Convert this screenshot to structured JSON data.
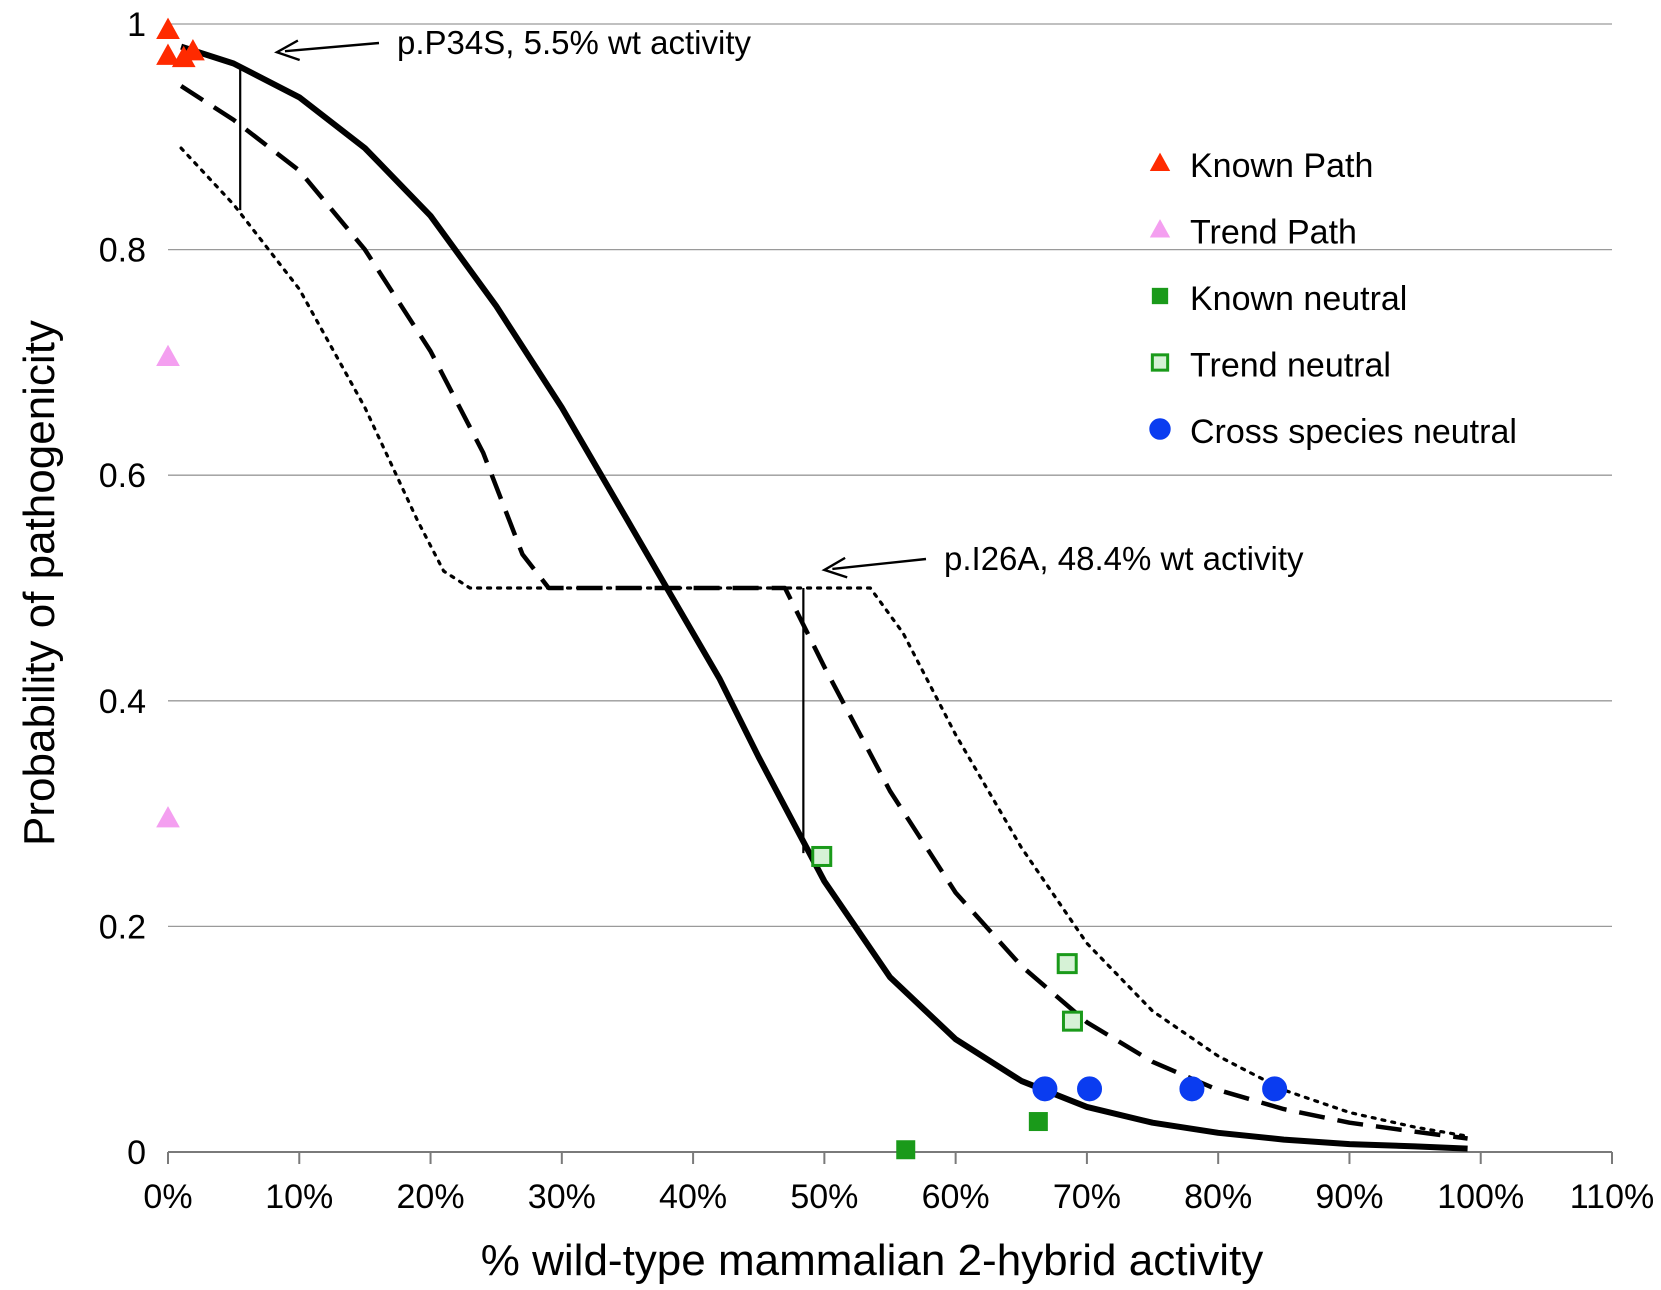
{
  "chart_data": {
    "type": "scatter",
    "title": "",
    "xlabel": "% wild-type mammalian 2-hybrid activity",
    "ylabel": "Probability of pathogenicity",
    "xlim": [
      0,
      110
    ],
    "ylim": [
      0,
      1
    ],
    "grid": {
      "horizontal": true,
      "vertical": false
    },
    "x_ticks": [
      {
        "value": 0,
        "label": "0%"
      },
      {
        "value": 10,
        "label": "10%"
      },
      {
        "value": 20,
        "label": "20%"
      },
      {
        "value": 30,
        "label": "30%"
      },
      {
        "value": 40,
        "label": "40%"
      },
      {
        "value": 50,
        "label": "50%"
      },
      {
        "value": 60,
        "label": "60%"
      },
      {
        "value": 70,
        "label": "70%"
      },
      {
        "value": 80,
        "label": "80%"
      },
      {
        "value": 90,
        "label": "90%"
      },
      {
        "value": 100,
        "label": "100%"
      },
      {
        "value": 110,
        "label": "110%"
      }
    ],
    "y_ticks": [
      {
        "value": 0,
        "label": "0"
      },
      {
        "value": 0.2,
        "label": "0.2"
      },
      {
        "value": 0.4,
        "label": "0.4"
      },
      {
        "value": 0.6,
        "label": "0.6"
      },
      {
        "value": 0.8,
        "label": "0.8"
      },
      {
        "value": 1,
        "label": "1"
      }
    ],
    "legend_position": "top-right",
    "series": [
      {
        "name": "Known Path",
        "marker": "triangle",
        "color": "#ff2a00",
        "fill": "#ff2a00",
        "stroke": "#ff2a00",
        "points": [
          {
            "x": 0,
            "y": 0.995
          },
          {
            "x": 0,
            "y": 0.972
          },
          {
            "x": 1.2,
            "y": 0.97
          },
          {
            "x": 1.9,
            "y": 0.976
          }
        ]
      },
      {
        "name": "Trend Path",
        "marker": "triangle",
        "color": "#f49ff0",
        "fill": "#f49ff0",
        "stroke": "#f49ff0",
        "points": [
          {
            "x": 0,
            "y": 0.705
          },
          {
            "x": 0,
            "y": 0.296
          }
        ]
      },
      {
        "name": "Known neutral",
        "marker": "square",
        "color": "#1a9a1a",
        "fill": "#1a9a1a",
        "stroke": "#1a9a1a",
        "points": [
          {
            "x": 56.2,
            "y": 0.002
          },
          {
            "x": 66.3,
            "y": 0.027
          }
        ]
      },
      {
        "name": "Trend neutral",
        "marker": "square-open",
        "color": "#1a9a1a",
        "fill": "#d6f2d6",
        "stroke": "#1a9a1a",
        "points": [
          {
            "x": 49.8,
            "y": 0.262
          },
          {
            "x": 68.5,
            "y": 0.167
          },
          {
            "x": 68.9,
            "y": 0.116
          }
        ]
      },
      {
        "name": "Cross species neutral",
        "marker": "circle",
        "color": "#0a3cf0",
        "fill": "#0a3cf0",
        "stroke": "#0a3cf0",
        "points": [
          {
            "x": 66.8,
            "y": 0.056
          },
          {
            "x": 70.2,
            "y": 0.056
          },
          {
            "x": 78.0,
            "y": 0.056
          },
          {
            "x": 84.3,
            "y": 0.056
          }
        ]
      }
    ],
    "curves": [
      {
        "style": "solid",
        "color": "#000000",
        "points": [
          [
            1,
            0.98
          ],
          [
            5,
            0.965
          ],
          [
            10,
            0.935
          ],
          [
            15,
            0.89
          ],
          [
            20,
            0.83
          ],
          [
            25,
            0.75
          ],
          [
            30,
            0.66
          ],
          [
            35,
            0.56
          ],
          [
            38,
            0.5
          ],
          [
            42,
            0.42
          ],
          [
            45,
            0.35
          ],
          [
            50,
            0.24
          ],
          [
            55,
            0.155
          ],
          [
            60,
            0.1
          ],
          [
            65,
            0.063
          ],
          [
            70,
            0.04
          ],
          [
            75,
            0.026
          ],
          [
            80,
            0.017
          ],
          [
            85,
            0.011
          ],
          [
            90,
            0.007
          ],
          [
            95,
            0.005
          ],
          [
            99,
            0.003
          ]
        ]
      },
      {
        "style": "dashed",
        "color": "#000000",
        "points": [
          [
            1,
            0.945
          ],
          [
            5,
            0.915
          ],
          [
            10,
            0.87
          ],
          [
            15,
            0.8
          ],
          [
            20,
            0.71
          ],
          [
            24,
            0.62
          ],
          [
            27,
            0.53
          ],
          [
            29,
            0.5
          ],
          [
            47,
            0.5
          ],
          [
            50,
            0.43
          ],
          [
            55,
            0.32
          ],
          [
            60,
            0.23
          ],
          [
            65,
            0.165
          ],
          [
            70,
            0.115
          ],
          [
            75,
            0.08
          ],
          [
            80,
            0.055
          ],
          [
            85,
            0.038
          ],
          [
            90,
            0.026
          ],
          [
            95,
            0.018
          ],
          [
            99,
            0.012
          ]
        ]
      },
      {
        "style": "dotted",
        "color": "#000000",
        "points": [
          [
            1,
            0.89
          ],
          [
            5,
            0.84
          ],
          [
            10,
            0.765
          ],
          [
            15,
            0.66
          ],
          [
            19,
            0.56
          ],
          [
            21,
            0.515
          ],
          [
            23,
            0.5
          ],
          [
            53.5,
            0.5
          ],
          [
            56,
            0.46
          ],
          [
            60,
            0.37
          ],
          [
            65,
            0.27
          ],
          [
            70,
            0.185
          ],
          [
            75,
            0.125
          ],
          [
            80,
            0.085
          ],
          [
            85,
            0.055
          ],
          [
            90,
            0.035
          ],
          [
            95,
            0.022
          ],
          [
            99,
            0.014
          ]
        ]
      }
    ],
    "vertical_markers": [
      {
        "x": 5.5,
        "y1": 0.835,
        "y2": 0.962
      },
      {
        "x": 48.4,
        "y1": 0.265,
        "y2": 0.5
      }
    ],
    "annotations": [
      {
        "text": "p.P34S, 5.5% wt activity",
        "tip_x": 8.3,
        "tip_y": 0.975
      },
      {
        "text": "p.I26A, 48.4% wt activity",
        "tip_x": 50.0,
        "tip_y": 0.516
      }
    ]
  }
}
